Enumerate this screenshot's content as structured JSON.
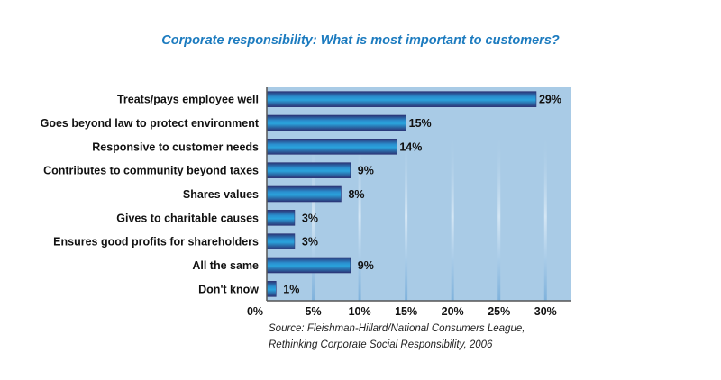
{
  "colors": {
    "title": "#1c7bbf",
    "plot_bg": "#a9cbe6",
    "bar_mid": "#2a9fd8",
    "bar_edge": "#2b3577"
  },
  "chart_data": {
    "type": "bar",
    "orientation": "horizontal",
    "title": "Corporate responsibility: What is most important to customers?",
    "categories": [
      "Treats/pays employee well",
      "Goes beyond law to protect environment",
      "Responsive to customer needs",
      "Contributes to community beyond taxes",
      "Shares values",
      "Gives to charitable causes",
      "Ensures good profits for shareholders",
      "All the same",
      "Don't know"
    ],
    "values": [
      29,
      15,
      14,
      9,
      8,
      3,
      3,
      9,
      1
    ],
    "value_labels": [
      "29%",
      "15%",
      "14%",
      "9%",
      "8%",
      "3%",
      "3%",
      "9%",
      "1%"
    ],
    "xlim": [
      0,
      32
    ],
    "xticks": [
      0,
      5,
      10,
      15,
      20,
      25,
      30
    ],
    "xtick_labels": [
      "0%",
      "5%",
      "10%",
      "15%",
      "20%",
      "25%",
      "30%"
    ],
    "xlabel": "",
    "ylabel": "",
    "grid": true
  },
  "source": {
    "line1": "Source: Fleishman-Hillard/National Consumers League,",
    "line2": "Rethinking Corporate Social Responsibility, 2006"
  }
}
